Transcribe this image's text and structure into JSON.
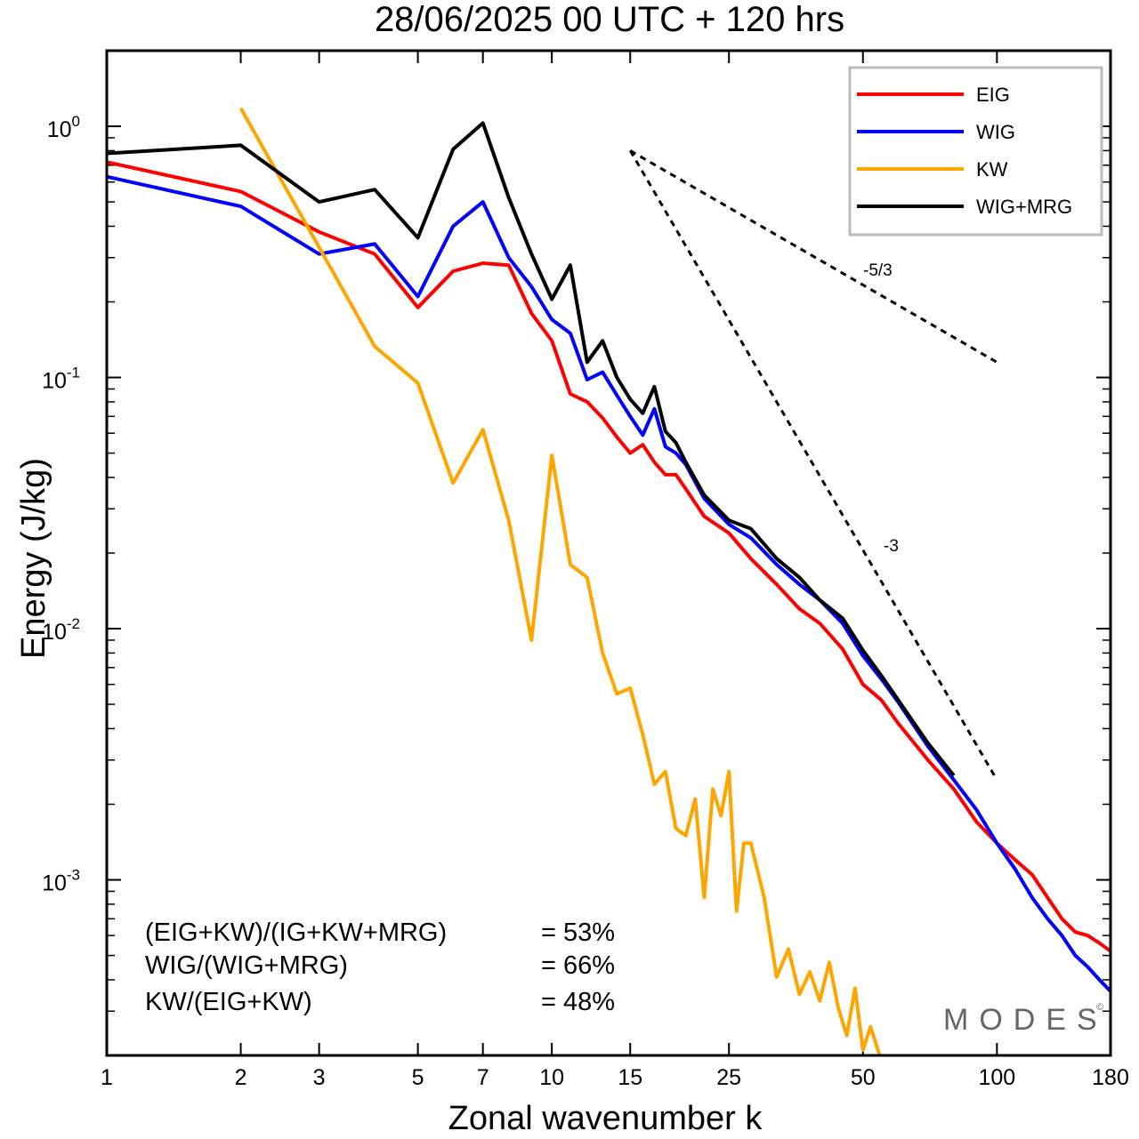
{
  "chart_data": {
    "type": "line",
    "title": "28/06/2025  00 UTC  + 120 hrs",
    "xlabel": "Zonal wavenumber k",
    "ylabel": "Energy (J/kg)",
    "x_scale": "log",
    "y_scale": "log",
    "xlim": [
      1,
      180
    ],
    "ylim": [
      0.0002,
      2.0
    ],
    "x_ticks": [
      1,
      2,
      3,
      5,
      7,
      10,
      15,
      25,
      50,
      100,
      180
    ],
    "x_tick_labels": [
      "1",
      "2",
      "3",
      "5",
      "7",
      "10",
      "15",
      "25",
      "50",
      "100",
      "180"
    ],
    "y_ticks": [
      {
        "base": "10",
        "exp": "0",
        "value": 1
      },
      {
        "base": "10",
        "exp": "-1",
        "value": 0.1
      },
      {
        "base": "10",
        "exp": "-2",
        "value": 0.01
      },
      {
        "base": "10",
        "exp": "-3",
        "value": 0.001
      }
    ],
    "legend_position": "top-right",
    "series": [
      {
        "name": "EIG",
        "color": "#ff0000",
        "x": [
          1,
          2,
          3,
          4,
          5,
          6,
          7,
          8,
          9,
          10,
          11,
          12,
          13,
          14,
          15,
          16,
          17,
          18,
          19,
          20,
          22,
          25,
          28,
          32,
          36,
          40,
          45,
          50,
          55,
          60,
          70,
          80,
          90,
          100,
          110,
          120,
          130,
          140,
          150,
          160,
          170,
          180
        ],
        "y": [
          0.72,
          0.55,
          0.38,
          0.31,
          0.19,
          0.265,
          0.285,
          0.28,
          0.18,
          0.14,
          0.086,
          0.08,
          0.069,
          0.058,
          0.05,
          0.054,
          0.046,
          0.041,
          0.041,
          0.036,
          0.028,
          0.024,
          0.019,
          0.015,
          0.012,
          0.0105,
          0.0083,
          0.006,
          0.0052,
          0.0042,
          0.003,
          0.0023,
          0.0017,
          0.0014,
          0.0012,
          0.00105,
          0.00085,
          0.0007,
          0.00062,
          0.0006,
          0.00056,
          0.00052
        ]
      },
      {
        "name": "WIG",
        "color": "#0000ff",
        "x": [
          1,
          2,
          3,
          4,
          5,
          6,
          7,
          8,
          9,
          10,
          11,
          12,
          13,
          14,
          15,
          16,
          17,
          18,
          19,
          20,
          22,
          25,
          28,
          32,
          36,
          40,
          45,
          50,
          55,
          60,
          70,
          80,
          90,
          100,
          110,
          120,
          130,
          140,
          150,
          160,
          170,
          180
        ],
        "y": [
          0.63,
          0.48,
          0.31,
          0.34,
          0.21,
          0.4,
          0.5,
          0.3,
          0.23,
          0.17,
          0.15,
          0.098,
          0.105,
          0.085,
          0.07,
          0.059,
          0.075,
          0.053,
          0.05,
          0.045,
          0.033,
          0.026,
          0.023,
          0.018,
          0.015,
          0.013,
          0.0105,
          0.0078,
          0.0063,
          0.0051,
          0.0034,
          0.0025,
          0.0019,
          0.0014,
          0.0011,
          0.00085,
          0.0007,
          0.0006,
          0.0005,
          0.00045,
          0.0004,
          0.00036
        ]
      },
      {
        "name": "KW",
        "color": "#ffa500",
        "x": [
          2,
          3,
          4,
          5,
          6,
          7,
          8,
          9,
          10,
          11,
          12,
          13,
          14,
          15,
          16,
          17,
          18,
          19,
          20,
          21,
          22,
          23,
          24,
          25,
          26,
          27,
          28,
          30,
          32,
          34,
          36,
          38,
          40,
          42,
          44,
          46,
          48,
          50,
          52,
          55
        ],
        "y": [
          1.18,
          0.33,
          0.133,
          0.095,
          0.038,
          0.062,
          0.027,
          0.009,
          0.049,
          0.018,
          0.016,
          0.008,
          0.0055,
          0.0058,
          0.0038,
          0.0024,
          0.0027,
          0.0016,
          0.0015,
          0.0021,
          0.00085,
          0.0023,
          0.0018,
          0.0027,
          0.00075,
          0.0014,
          0.0014,
          0.00085,
          0.00041,
          0.00053,
          0.00035,
          0.00043,
          0.00033,
          0.00047,
          0.00031,
          0.00024,
          0.00037,
          0.00021,
          0.00026,
          0.00019
        ]
      },
      {
        "name": "WIG+MRG",
        "color": "#000000",
        "x": [
          1,
          2,
          3,
          4,
          5,
          6,
          7,
          8,
          9,
          10,
          11,
          12,
          13,
          14,
          15,
          16,
          17,
          18,
          19,
          20,
          22,
          25,
          28,
          32,
          36,
          40,
          45,
          50,
          55,
          60,
          70,
          80
        ],
        "y": [
          0.78,
          0.84,
          0.5,
          0.56,
          0.36,
          0.81,
          1.03,
          0.52,
          0.31,
          0.205,
          0.28,
          0.115,
          0.14,
          0.1,
          0.082,
          0.072,
          0.092,
          0.061,
          0.055,
          0.046,
          0.034,
          0.027,
          0.025,
          0.019,
          0.016,
          0.013,
          0.011,
          0.0082,
          0.0065,
          0.0052,
          0.0035,
          0.0026
        ]
      }
    ],
    "reference_lines": [
      {
        "label": "-5/3",
        "x": [
          15,
          100
        ],
        "y": [
          0.8,
          0.115
        ]
      },
      {
        "label": "-3",
        "x": [
          15,
          100
        ],
        "y": [
          0.8,
          0.0025
        ]
      }
    ],
    "annotations": [
      {
        "text": "(EIG+KW)/(IG+KW+MRG)",
        "value": "= 53%"
      },
      {
        "text": "WIG/(WIG+MRG)",
        "value": "= 66%"
      },
      {
        "text": "KW/(EIG+KW)",
        "value": "= 48%"
      }
    ],
    "watermark": "MODES",
    "watermark_mark": "©"
  }
}
